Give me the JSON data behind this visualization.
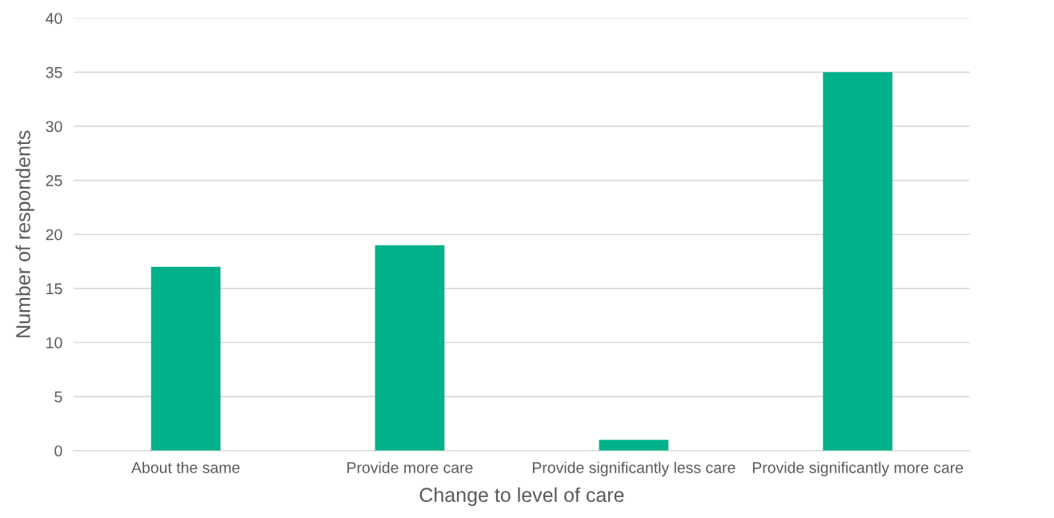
{
  "chart_data": {
    "type": "bar",
    "xlabel": "Change to level of care",
    "ylabel": "Number of respondents",
    "categories": [
      "About the same",
      "Provide more care",
      "Provide significantly less care",
      "Provide significantly more care"
    ],
    "values": [
      17,
      19,
      1,
      35
    ],
    "color": "#00b18a",
    "ylim": [
      0,
      40
    ],
    "yticks": [
      0,
      5,
      10,
      15,
      20,
      25,
      30,
      35,
      40
    ],
    "grid": "y",
    "legend": false
  }
}
